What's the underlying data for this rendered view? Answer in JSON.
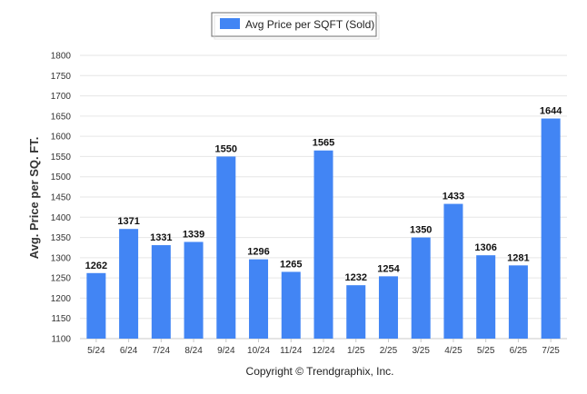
{
  "chart_data": {
    "type": "bar",
    "categories": [
      "5/24",
      "6/24",
      "7/24",
      "8/24",
      "9/24",
      "10/24",
      "11/24",
      "12/24",
      "1/25",
      "2/25",
      "3/25",
      "4/25",
      "5/25",
      "6/25",
      "7/25"
    ],
    "series": [
      {
        "name": "Avg Price per SQFT (Sold)",
        "values": [
          1262,
          1371,
          1331,
          1339,
          1550,
          1296,
          1265,
          1565,
          1232,
          1254,
          1350,
          1433,
          1306,
          1281,
          1644
        ]
      }
    ],
    "ylabel": "Avg. Price per SQ. FT.",
    "ylim": [
      1100,
      1800
    ],
    "yticks": [
      1100,
      1150,
      1200,
      1250,
      1300,
      1350,
      1400,
      1450,
      1500,
      1550,
      1600,
      1650,
      1700,
      1750,
      1800
    ],
    "grid": true,
    "legend_position": "top-center",
    "bar_color": "#4285f4",
    "data_labels": true
  },
  "footer": {
    "copyright": "Copyright © Trendgraphix, Inc."
  }
}
